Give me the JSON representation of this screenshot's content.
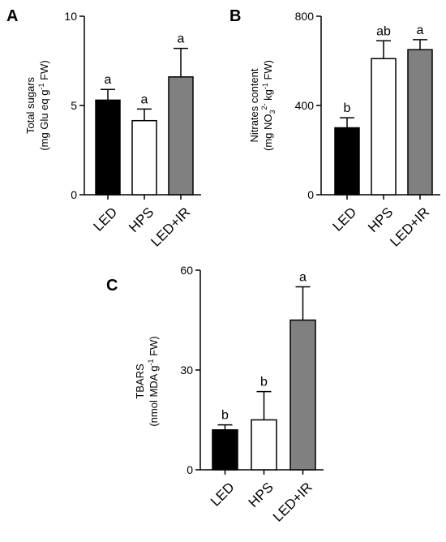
{
  "chart_data": [
    {
      "type": "bar",
      "panel": "A",
      "categories": [
        "LED",
        "HPS",
        "LED+IR"
      ],
      "values": [
        5.3,
        4.15,
        6.6
      ],
      "errors": [
        0.6,
        0.65,
        1.6
      ],
      "significance": [
        "a",
        "a",
        "a"
      ],
      "colors": [
        "#000000",
        "#ffffff",
        "#808080"
      ],
      "ylabel_line1": "Total sugars",
      "ylabel_line2": "(mg Glu eq g",
      "ylabel_sup2": "-1",
      "ylabel_tail2": " FW)",
      "ylim": [
        0,
        10
      ],
      "yticks": [
        0,
        5,
        10
      ],
      "ytick_labels": [
        "0",
        "5",
        "10"
      ]
    },
    {
      "type": "bar",
      "panel": "B",
      "categories": [
        "LED",
        "HPS",
        "LED+IR"
      ],
      "values": [
        300,
        610,
        650
      ],
      "errors": [
        45,
        80,
        45
      ],
      "significance": [
        "b",
        "ab",
        "a"
      ],
      "colors": [
        "#000000",
        "#ffffff",
        "#808080"
      ],
      "ylabel_line1": "Nitrates content",
      "ylabel_line2": "(mg NO",
      "ylabel_sub2": "3",
      "ylabel_sup2": "2-",
      "ylabel_mid2": " kg",
      "ylabel_sup2b": "-1",
      "ylabel_tail2": " FW)",
      "ylim": [
        0,
        800
      ],
      "yticks": [
        0,
        400,
        800
      ],
      "ytick_labels": [
        "0",
        "400",
        "800"
      ]
    },
    {
      "type": "bar",
      "panel": "C",
      "categories": [
        "LED",
        "HPS",
        "LED+IR"
      ],
      "values": [
        12,
        15,
        45
      ],
      "errors": [
        1.5,
        8.5,
        10
      ],
      "significance": [
        "b",
        "b",
        "a"
      ],
      "colors": [
        "#000000",
        "#ffffff",
        "#808080"
      ],
      "ylabel_line1": "TBARS",
      "ylabel_line2": "(nmol MDA g",
      "ylabel_sup2": "-1",
      "ylabel_tail2": " FW)",
      "ylim": [
        0,
        60
      ],
      "yticks": [
        0,
        30,
        60
      ],
      "ytick_labels": [
        "0",
        "30",
        "60"
      ]
    }
  ]
}
